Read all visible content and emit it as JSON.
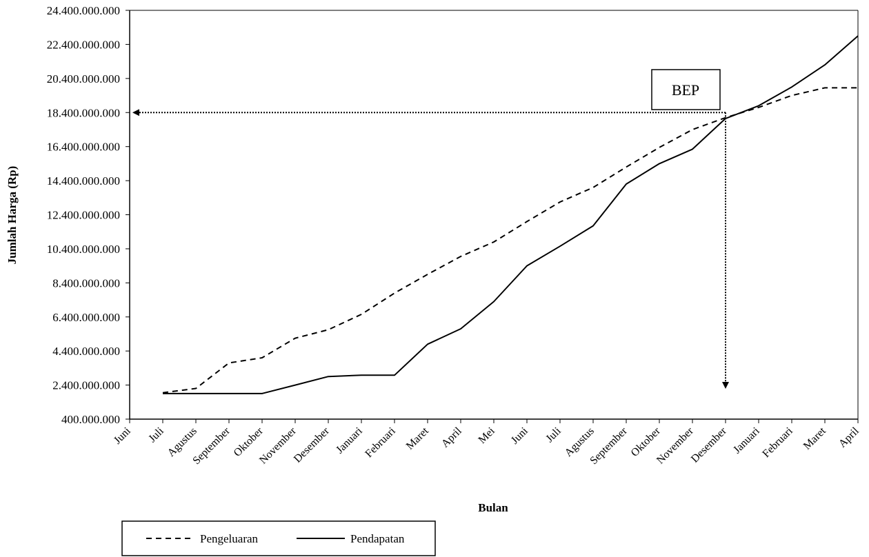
{
  "chart_data": {
    "type": "line",
    "title": "",
    "xlabel": "Bulan",
    "ylabel": "Jumlah Harga (Rp)",
    "ylim": [
      400000000,
      24400000000
    ],
    "yticks": [
      "400.000.000",
      "2.400.000.000",
      "4.400.000.000",
      "6.400.000.000",
      "8.400.000.000",
      "10.400.000.000",
      "12.400.000.000",
      "14.400.000.000",
      "16.400.000.000",
      "18.400.000.000",
      "20.400.000.000",
      "22.400.000.000",
      "24.400.000.000"
    ],
    "ytick_values": [
      400000000,
      2400000000,
      4400000000,
      6400000000,
      8400000000,
      10400000000,
      12400000000,
      14400000000,
      16400000000,
      18400000000,
      20400000000,
      22400000000,
      24400000000
    ],
    "categories": [
      "Juni",
      "Juli",
      "Agustus",
      "September",
      "Oktober",
      "November",
      "Desember",
      "Januari",
      "Februari",
      "Maret",
      "April",
      "Mei",
      "Juni",
      "Juli",
      "Agustus",
      "September",
      "Oktober",
      "November",
      "Desember",
      "Januari",
      "Februari",
      "Maret",
      "April"
    ],
    "series": [
      {
        "name": "Pengeluaran",
        "style": "dashed",
        "values": [
          null,
          1950000000,
          2200000000,
          3700000000,
          4000000000,
          5150000000,
          5650000000,
          6550000000,
          7800000000,
          8900000000,
          9950000000,
          10800000000,
          12000000000,
          13150000000,
          14000000000,
          15200000000,
          16350000000,
          17400000000,
          18100000000,
          18700000000,
          19400000000,
          19850000000,
          19850000000
        ]
      },
      {
        "name": "Pendapatan",
        "style": "solid",
        "values": [
          null,
          1900000000,
          1900000000,
          1900000000,
          1900000000,
          2400000000,
          2900000000,
          2980000000,
          2980000000,
          4800000000,
          5700000000,
          7300000000,
          9400000000,
          10550000000,
          11750000000,
          14200000000,
          15400000000,
          16250000000,
          18050000000,
          18800000000,
          19900000000,
          21200000000,
          22900000000
        ]
      }
    ],
    "annotation": {
      "label": "BEP",
      "x_category_index": 18,
      "y_value": 18400000000
    },
    "grid": false,
    "legend": "bottom-left"
  }
}
